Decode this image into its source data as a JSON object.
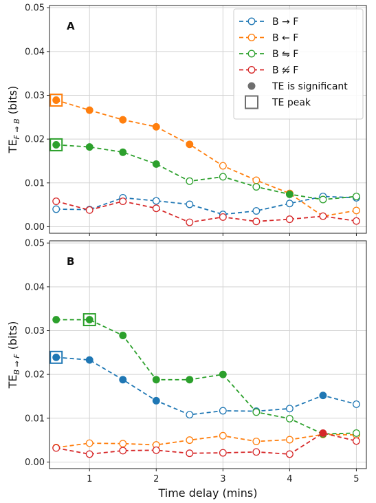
{
  "chart_data": [
    {
      "type": "line",
      "panel_label": "A",
      "ylabel_main": "TE",
      "ylabel_sub": "F ⇒ B",
      "ylabel_unit": "(bits)",
      "xlabel": "",
      "xlim": [
        0.4,
        5.15
      ],
      "ylim": [
        -0.0015,
        0.0505
      ],
      "xticks": [
        1,
        2,
        3,
        4,
        5
      ],
      "yticks": [
        "0.00",
        "0.01",
        "0.02",
        "0.03",
        "0.04",
        "0.05"
      ],
      "grid": true,
      "legend": {
        "position": "top-right",
        "extra_entries": [
          {
            "label": "TE is significant",
            "marker": "filled-circle"
          },
          {
            "label": "TE peak",
            "marker": "square"
          }
        ]
      },
      "x": [
        0.5,
        1,
        1.5,
        2,
        2.5,
        3,
        3.5,
        4,
        4.5,
        5
      ],
      "series": [
        {
          "name": "B → F",
          "color": "#1f77b4",
          "values": [
            0.004,
            0.0039,
            0.0066,
            0.0059,
            0.0051,
            0.0028,
            0.0036,
            0.0053,
            0.0069,
            0.0066
          ],
          "significant": [
            false,
            false,
            false,
            false,
            false,
            false,
            false,
            false,
            false,
            false
          ],
          "peak_index": null
        },
        {
          "name": "B ← F",
          "color": "#ff7f0e",
          "values": [
            0.0289,
            0.0266,
            0.0244,
            0.0228,
            0.0188,
            0.0139,
            0.0106,
            0.0076,
            0.0024,
            0.0037
          ],
          "significant": [
            true,
            true,
            true,
            true,
            true,
            false,
            false,
            false,
            false,
            false
          ],
          "peak_index": 0
        },
        {
          "name": "B ⇋ F",
          "color": "#2ca02c",
          "values": [
            0.0187,
            0.0182,
            0.017,
            0.0143,
            0.0104,
            0.0114,
            0.0091,
            0.0074,
            0.0062,
            0.0069
          ],
          "significant": [
            true,
            true,
            true,
            true,
            false,
            false,
            false,
            true,
            false,
            false
          ],
          "peak_index": 0
        },
        {
          "name": "B ⇋̸ F",
          "color": "#d62728",
          "values": [
            0.0058,
            0.0038,
            0.0058,
            0.0042,
            0.001,
            0.0022,
            0.0012,
            0.0017,
            0.0024,
            0.0013
          ],
          "significant": [
            false,
            false,
            false,
            false,
            false,
            false,
            false,
            false,
            false,
            false
          ],
          "peak_index": null
        }
      ]
    },
    {
      "type": "line",
      "panel_label": "B",
      "ylabel_main": "TE",
      "ylabel_sub": "B ⇒ F",
      "ylabel_unit": "(bits)",
      "xlabel": "Time delay (mins)",
      "xlim": [
        0.4,
        5.15
      ],
      "ylim": [
        -0.0015,
        0.0505
      ],
      "xticks": [
        1,
        2,
        3,
        4,
        5
      ],
      "yticks": [
        "0.00",
        "0.01",
        "0.02",
        "0.03",
        "0.04",
        "0.05"
      ],
      "grid": true,
      "x": [
        0.5,
        1,
        1.5,
        2,
        2.5,
        3,
        3.5,
        4,
        4.5,
        5
      ],
      "series": [
        {
          "name": "B → F",
          "color": "#1f77b4",
          "values": [
            0.0239,
            0.0233,
            0.0188,
            0.014,
            0.0108,
            0.0117,
            0.0116,
            0.0122,
            0.0152,
            0.0132
          ],
          "significant": [
            true,
            true,
            true,
            true,
            false,
            false,
            false,
            false,
            true,
            false
          ],
          "peak_index": 0
        },
        {
          "name": "B ← F",
          "color": "#ff7f0e",
          "values": [
            0.0033,
            0.0043,
            0.0042,
            0.0039,
            0.005,
            0.006,
            0.0047,
            0.0051,
            0.0063,
            0.0062
          ],
          "significant": [
            false,
            false,
            false,
            false,
            false,
            false,
            false,
            false,
            false,
            false
          ],
          "peak_index": null
        },
        {
          "name": "B ⇋ F",
          "color": "#2ca02c",
          "values": [
            0.0325,
            0.0325,
            0.0289,
            0.0188,
            0.0188,
            0.02,
            0.0114,
            0.0099,
            0.0064,
            0.0066
          ],
          "significant": [
            true,
            true,
            true,
            true,
            true,
            true,
            false,
            false,
            false,
            false
          ],
          "peak_index": 1
        },
        {
          "name": "B ⇋̸ F",
          "color": "#d62728",
          "values": [
            0.0032,
            0.0018,
            0.0026,
            0.0027,
            0.002,
            0.0021,
            0.0023,
            0.0018,
            0.0066,
            0.0048
          ],
          "significant": [
            false,
            false,
            false,
            false,
            false,
            false,
            false,
            false,
            true,
            false
          ],
          "peak_index": null
        }
      ]
    }
  ]
}
